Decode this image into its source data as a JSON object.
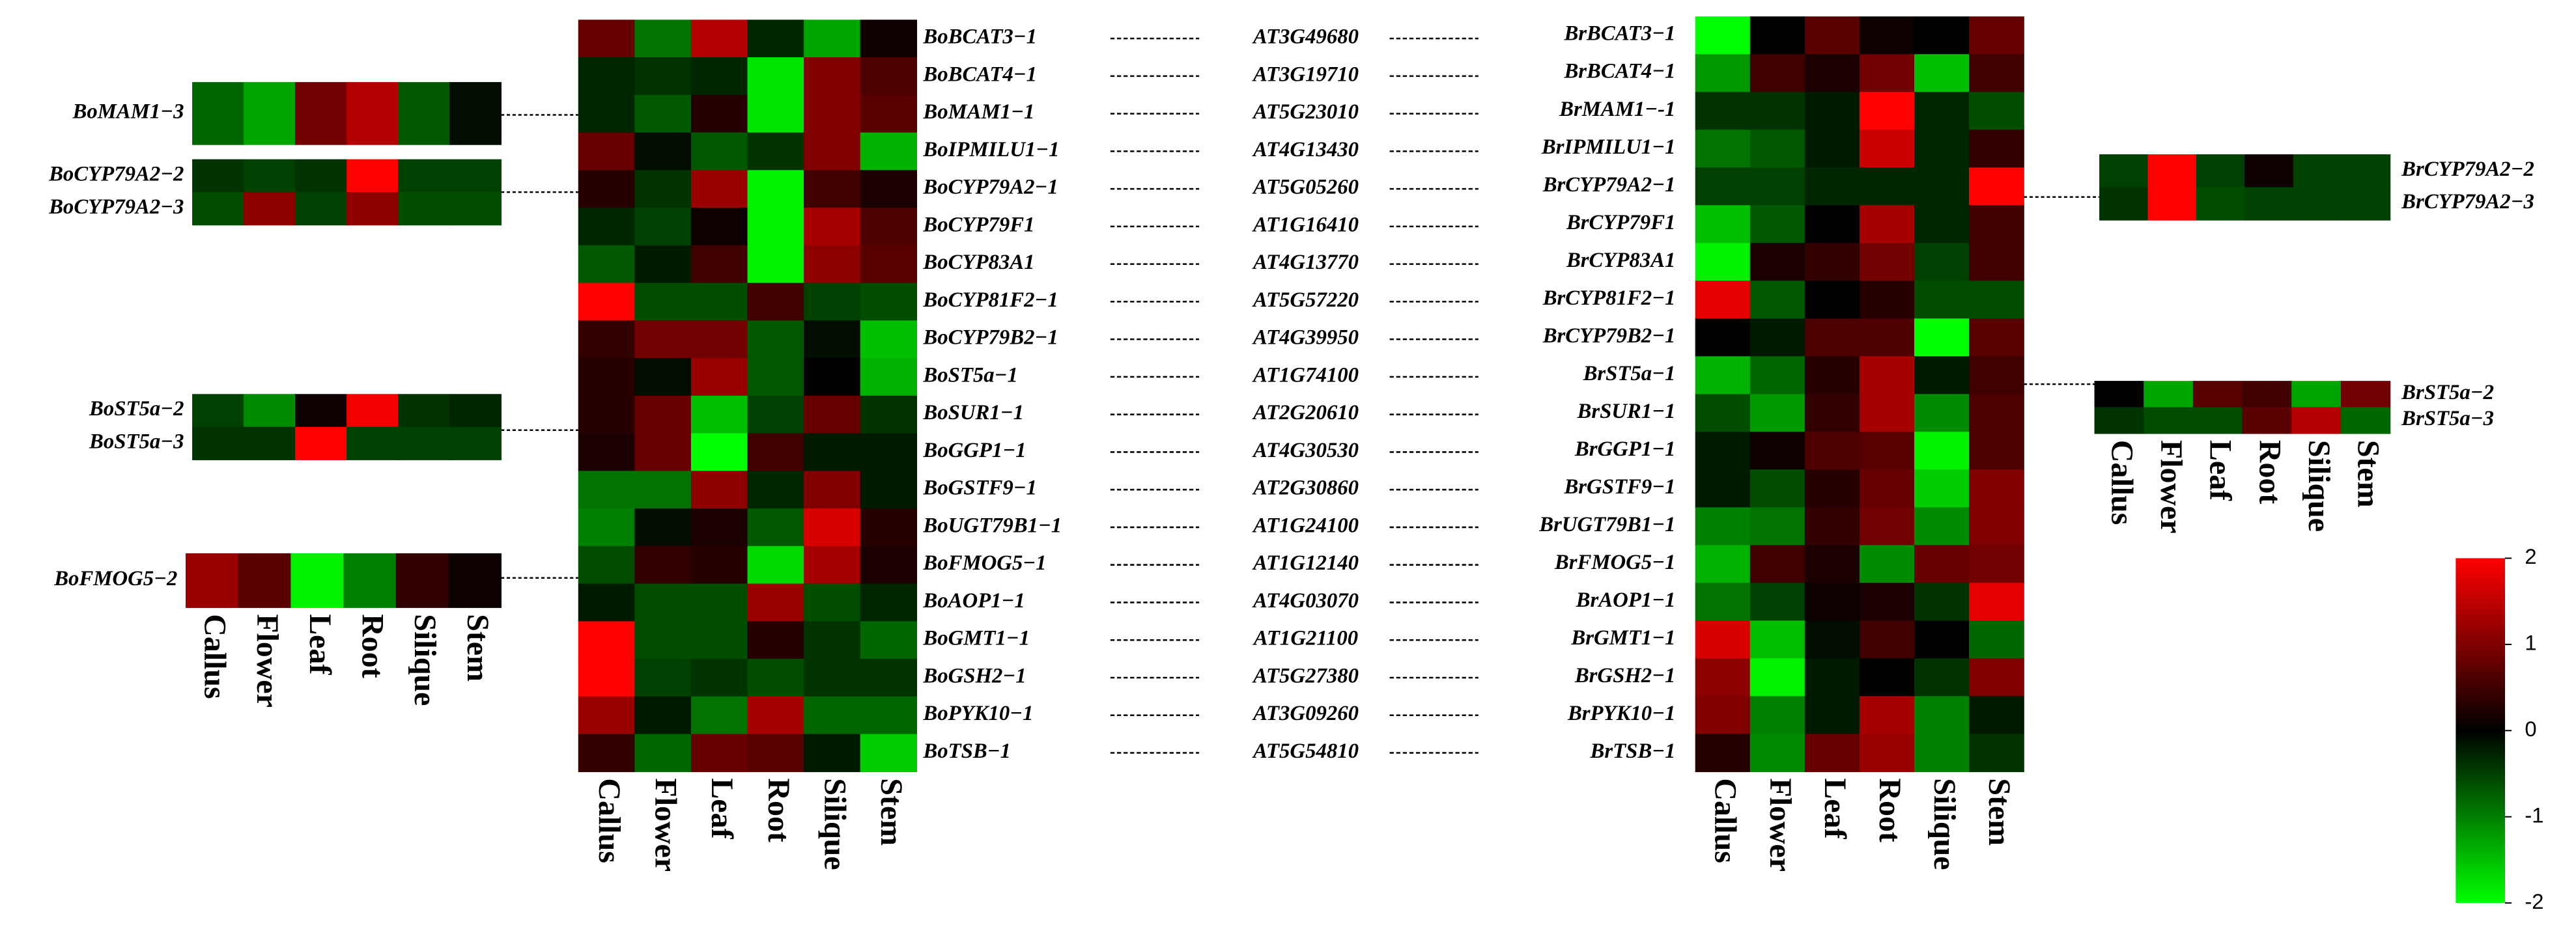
{
  "chart_data": {
    "type": "heatmap",
    "columns": [
      "Callus",
      "Flower",
      "Leaf",
      "Root",
      "Silique",
      "Stem"
    ],
    "zlim": [
      -2,
      2
    ],
    "colorbar_ticks": [
      2,
      1,
      0,
      -1,
      -2
    ],
    "colors": [
      "#00ff00",
      "#000000",
      "#ff0000"
    ],
    "links": [
      "AT3G49680",
      "AT3G19710",
      "AT5G23010",
      "AT4G13430",
      "AT5G05260",
      "AT1G16410",
      "AT4G13770",
      "AT5G57220",
      "AT4G39950",
      "AT1G74100",
      "AT2G20610",
      "AT4G30530",
      "AT2G30860",
      "AT1G24100",
      "AT1G12140",
      "AT4G03070",
      "AT1G21100",
      "AT5G27380",
      "AT3G09260",
      "AT5G54810"
    ],
    "panels": [
      {
        "rows": [
          "BoBCAT3−1",
          "BoBCAT4−1",
          "BoMAM1−1",
          "BoIPMILU1−1",
          "BoCYP79A2−1",
          "BoCYP79F1",
          "BoCYP83A1",
          "BoCYP81F2−1",
          "BoCYP79B2−1",
          "BoST5a−1",
          "BoSUR1−1",
          "BoGGP1−1",
          "BoGSTF9−1",
          "BoUGT79B1−1",
          "BoFMOG5−1",
          "BoAOP1−1",
          "BoGMT1−1",
          "BoGSH2−1",
          "BoPYK10−1",
          "BoTSB−1"
        ],
        "values": [
          [
            0.8,
            -0.9,
            1.4,
            -0.3,
            -1.3,
            0.1
          ],
          [
            -0.3,
            -0.4,
            -0.3,
            -1.8,
            1.0,
            0.6
          ],
          [
            -0.3,
            -0.7,
            0.3,
            -1.8,
            1.0,
            0.7
          ],
          [
            0.8,
            -0.1,
            -0.7,
            -0.4,
            1.0,
            -1.4
          ],
          [
            0.3,
            -0.4,
            1.2,
            -1.9,
            0.5,
            0.2
          ],
          [
            -0.3,
            -0.5,
            0.1,
            -1.9,
            1.3,
            0.6
          ],
          [
            -0.7,
            -0.2,
            0.5,
            -1.9,
            1.1,
            0.7
          ],
          [
            2.0,
            -0.6,
            -0.6,
            0.5,
            -0.5,
            -0.6
          ],
          [
            0.4,
            0.9,
            0.9,
            -0.7,
            -0.1,
            -1.5
          ],
          [
            0.3,
            -0.1,
            1.2,
            -0.7,
            0.0,
            -1.4
          ],
          [
            0.3,
            0.8,
            -1.5,
            -0.5,
            0.8,
            -0.4
          ],
          [
            0.2,
            0.8,
            -2.0,
            0.5,
            -0.2,
            -0.2
          ],
          [
            -0.9,
            -0.9,
            1.1,
            -0.3,
            1.0,
            -0.2
          ],
          [
            -1.0,
            -0.1,
            0.2,
            -0.7,
            1.7,
            0.3
          ],
          [
            -0.6,
            0.4,
            0.3,
            -1.7,
            1.3,
            0.2
          ],
          [
            -0.2,
            -0.6,
            -0.6,
            1.2,
            -0.6,
            -0.3
          ],
          [
            2.0,
            -0.6,
            -0.6,
            0.3,
            -0.4,
            -0.8
          ],
          [
            2.0,
            -0.5,
            -0.4,
            -0.6,
            -0.4,
            -0.4
          ],
          [
            1.2,
            -0.2,
            -0.9,
            1.3,
            -0.8,
            -0.8
          ],
          [
            0.4,
            -0.8,
            0.8,
            0.7,
            -0.2,
            -1.6
          ]
        ]
      },
      {
        "rows": [
          "BrBCAT3−1",
          "BrBCAT4−1",
          "BrMAM1−-1",
          "BrIPMILU1−1",
          "BrCYP79A2−1",
          "BrCYP79F1",
          "BrCYP83A1",
          "BrCYP81F2−1",
          "BrCYP79B2−1",
          "BrST5a−1",
          "BrSUR1−1",
          "BrGGP1−1",
          "BrGSTF9−1",
          "BrUGT79B1−1",
          "BrFMOG5−1",
          "BrAOP1−1",
          "BrGMT1−1",
          "BrGSH2−1",
          "BrPYK10−1",
          "BrTSB−1"
        ],
        "values": [
          [
            -2.0,
            0.0,
            0.7,
            0.1,
            0.0,
            0.8
          ],
          [
            -1.2,
            0.5,
            0.2,
            0.9,
            -1.5,
            0.5
          ],
          [
            -0.4,
            -0.4,
            -0.2,
            2.0,
            -0.3,
            -0.6
          ],
          [
            -0.9,
            -0.7,
            -0.2,
            1.6,
            -0.3,
            0.4
          ],
          [
            -0.5,
            -0.5,
            -0.3,
            -0.3,
            -0.3,
            2.0
          ],
          [
            -1.5,
            -0.7,
            0.0,
            1.3,
            -0.3,
            0.5
          ],
          [
            -1.9,
            0.2,
            0.4,
            0.9,
            -0.5,
            0.5
          ],
          [
            1.8,
            -0.7,
            0.0,
            0.3,
            -0.6,
            -0.6
          ],
          [
            0.0,
            -0.2,
            0.6,
            0.6,
            -2.0,
            0.7
          ],
          [
            -1.4,
            -0.8,
            0.3,
            1.3,
            -0.2,
            0.5
          ],
          [
            -0.6,
            -1.2,
            0.4,
            1.3,
            -1.1,
            0.6
          ],
          [
            -0.2,
            0.1,
            0.6,
            0.7,
            -1.9,
            0.6
          ],
          [
            -0.2,
            -0.6,
            0.3,
            0.8,
            -1.6,
            1.0
          ],
          [
            -1.0,
            -0.9,
            0.4,
            0.9,
            -1.1,
            1.0
          ],
          [
            -1.4,
            0.5,
            0.2,
            -1.1,
            0.8,
            0.9
          ],
          [
            -0.9,
            -0.5,
            0.1,
            0.2,
            -0.4,
            1.8
          ],
          [
            1.7,
            -1.5,
            -0.1,
            0.5,
            0.0,
            -0.8
          ],
          [
            1.1,
            -1.9,
            -0.2,
            0.0,
            -0.4,
            1.0
          ],
          [
            1.0,
            -1.0,
            -0.2,
            1.3,
            -1.0,
            -0.2
          ],
          [
            0.3,
            -1.1,
            0.8,
            1.2,
            -1.0,
            -0.4
          ]
        ]
      },
      {
        "rows": [
          "BoMAM1−3"
        ],
        "values": [
          [
            -0.8,
            -1.3,
            0.9,
            1.4,
            -0.7,
            -0.1
          ]
        ]
      },
      {
        "rows": [
          "BoCYP79A2−2",
          "BoCYP79A2−3"
        ],
        "values": [
          [
            -0.4,
            -0.5,
            -0.4,
            2.0,
            -0.5,
            -0.5
          ],
          [
            -0.6,
            1.1,
            -0.5,
            1.1,
            -0.6,
            -0.6
          ]
        ]
      },
      {
        "rows": [
          "BoST5a−2",
          "BoST5a−3"
        ],
        "values": [
          [
            -0.5,
            -1.1,
            0.1,
            1.9,
            -0.4,
            -0.3
          ],
          [
            -0.4,
            -0.4,
            2.0,
            -0.5,
            -0.5,
            -0.5
          ]
        ]
      },
      {
        "rows": [
          "BoFMOG5−2"
        ],
        "values": [
          [
            1.2,
            0.7,
            -1.9,
            -1.0,
            0.4,
            0.1
          ]
        ]
      },
      {
        "rows": [
          "BrCYP79A2−2",
          "BrCYP79A2−3"
        ],
        "values": [
          [
            -0.5,
            2.0,
            -0.5,
            0.1,
            -0.5,
            -0.5
          ],
          [
            -0.4,
            2.0,
            -0.6,
            -0.5,
            -0.5,
            -0.5
          ]
        ]
      },
      {
        "rows": [
          "BrST5a−2",
          "BrST5a−3"
        ],
        "values": [
          [
            0.0,
            -1.3,
            0.7,
            0.5,
            -1.3,
            0.9
          ],
          [
            -0.4,
            -0.6,
            -0.6,
            0.7,
            1.4,
            -0.8
          ]
        ]
      }
    ]
  }
}
